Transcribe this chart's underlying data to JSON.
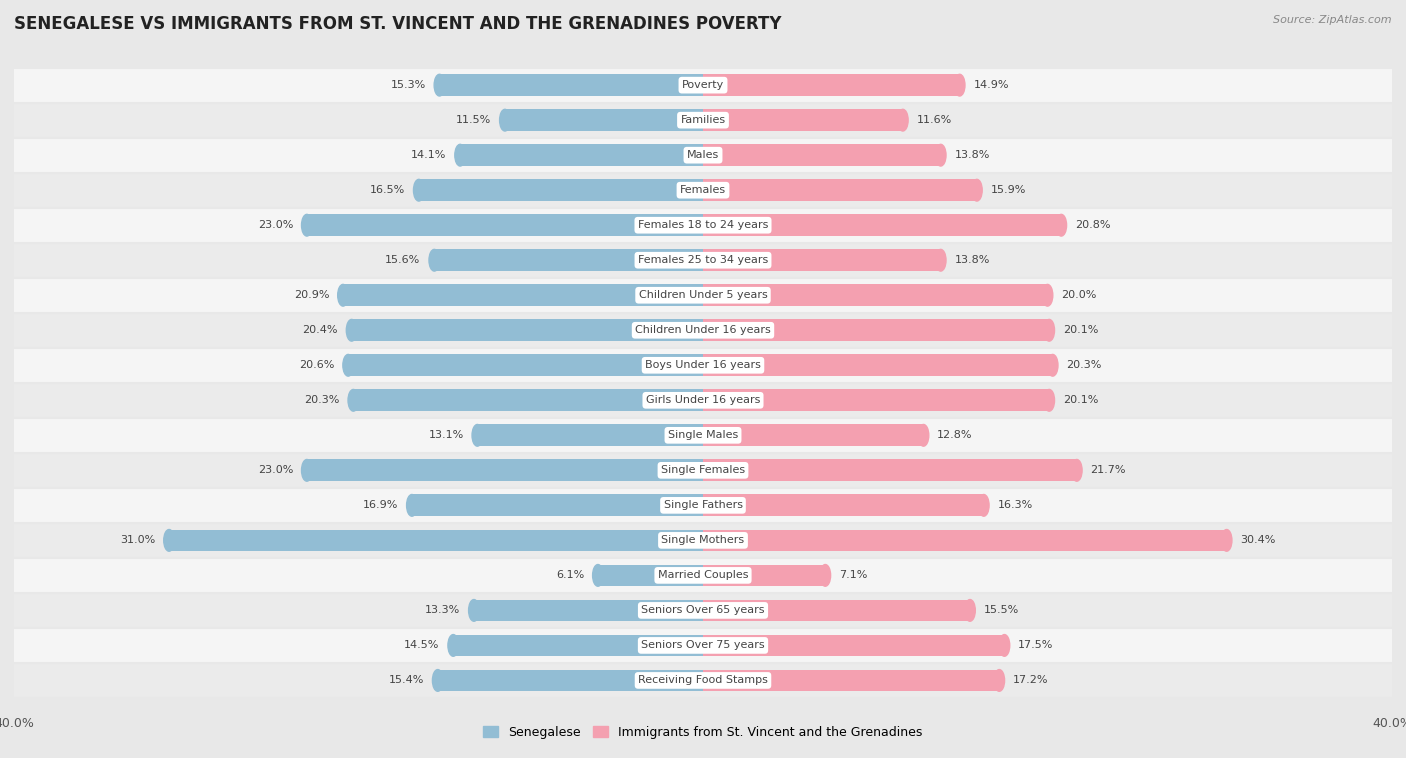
{
  "title": "SENEGALESE VS IMMIGRANTS FROM ST. VINCENT AND THE GRENADINES POVERTY",
  "source": "Source: ZipAtlas.com",
  "categories": [
    "Poverty",
    "Families",
    "Males",
    "Females",
    "Females 18 to 24 years",
    "Females 25 to 34 years",
    "Children Under 5 years",
    "Children Under 16 years",
    "Boys Under 16 years",
    "Girls Under 16 years",
    "Single Males",
    "Single Females",
    "Single Fathers",
    "Single Mothers",
    "Married Couples",
    "Seniors Over 65 years",
    "Seniors Over 75 years",
    "Receiving Food Stamps"
  ],
  "senegalese": [
    15.3,
    11.5,
    14.1,
    16.5,
    23.0,
    15.6,
    20.9,
    20.4,
    20.6,
    20.3,
    13.1,
    23.0,
    16.9,
    31.0,
    6.1,
    13.3,
    14.5,
    15.4
  ],
  "immigrants": [
    14.9,
    11.6,
    13.8,
    15.9,
    20.8,
    13.8,
    20.0,
    20.1,
    20.3,
    20.1,
    12.8,
    21.7,
    16.3,
    30.4,
    7.1,
    15.5,
    17.5,
    17.2
  ],
  "senegalese_color": "#92bdd4",
  "immigrants_color": "#f4a0b0",
  "background_color": "#e8e8e8",
  "row_color_light": "#f5f5f5",
  "row_color_dark": "#ebebeb",
  "bar_background": "#ffffff",
  "xlim": 40.0,
  "legend_label_1": "Senegalese",
  "legend_label_2": "Immigrants from St. Vincent and the Grenadines",
  "title_fontsize": 12,
  "label_fontsize": 8.0,
  "value_fontsize": 8.0
}
